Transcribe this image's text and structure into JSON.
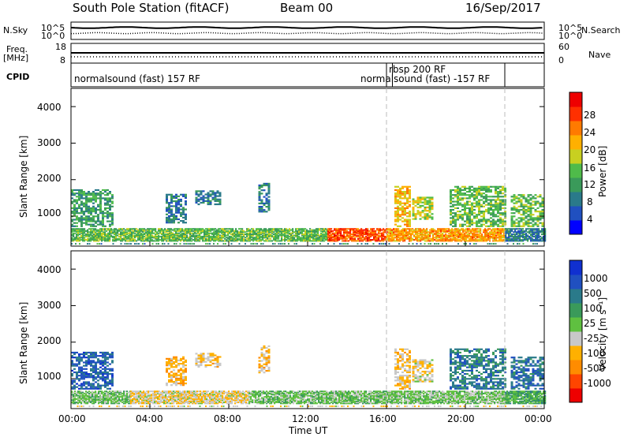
{
  "header": {
    "station": "South Pole Station (fitACF)",
    "beam": "Beam 00",
    "date": "16/Sep/2017"
  },
  "top_panels": {
    "nsky_label": "N.Sky",
    "nsearch_label": "N.Search",
    "freq_label_line1": "Freq.",
    "freq_label_line2": "[MHz]",
    "nave_label": "Nave",
    "cpid_label": "CPID",
    "left_ticks_noise": [
      "10^5",
      "10^0"
    ],
    "right_ticks_noise": [
      "10^5",
      "10^0"
    ],
    "left_ticks_freq": [
      "18",
      "8"
    ],
    "right_ticks_nave": [
      "60",
      "0"
    ],
    "cpid_segments": [
      {
        "label": "normalsound (fast) 157 RF",
        "start_hour": 0,
        "end_hour": 16
      },
      {
        "label": "rbsp 200 RF",
        "start_hour": 16,
        "end_hour": 16.3
      },
      {
        "label": "normalsound (fast) -157 RF",
        "start_hour": 16.3,
        "end_hour": 22
      }
    ]
  },
  "time_axis": {
    "label": "Time UT",
    "ticks": [
      "00:00",
      "04:00",
      "08:00",
      "12:00",
      "16:00",
      "20:00",
      "00:00"
    ],
    "range_hours": [
      0,
      24
    ],
    "dashed_marks_hours": [
      16,
      22
    ]
  },
  "chart_data": [
    {
      "type": "heatmap",
      "ylabel": "Slant Range [km]",
      "ylim": [
        180,
        4500
      ],
      "yticks": [
        "4000",
        "3000",
        "2000",
        "1000"
      ],
      "colorbar": {
        "label": "Power [dB]",
        "ticks": [
          "28",
          "24",
          "20",
          "16",
          "12",
          "8",
          "4"
        ],
        "range": [
          0,
          32
        ],
        "colors": [
          "#0000ff",
          "#2050c0",
          "#2a7a8a",
          "#3a9a5a",
          "#4fbb4a",
          "#c8d020",
          "#ffb000",
          "#ff7a00",
          "#ff3000",
          "#ee0000"
        ]
      },
      "blobs": [
        {
          "t0": 0.0,
          "t1": 2.1,
          "r0": 700,
          "r1": 1700,
          "v": 11
        },
        {
          "t0": 4.8,
          "t1": 5.8,
          "r0": 800,
          "r1": 1600,
          "v": 8
        },
        {
          "t0": 6.3,
          "t1": 7.6,
          "r0": 1300,
          "r1": 1700,
          "v": 9
        },
        {
          "t0": 9.5,
          "t1": 10.0,
          "r0": 1100,
          "r1": 1900,
          "v": 8
        },
        {
          "t0": 16.4,
          "t1": 17.2,
          "r0": 700,
          "r1": 1800,
          "v": 20
        },
        {
          "t0": 17.3,
          "t1": 18.3,
          "r0": 900,
          "r1": 1500,
          "v": 17
        },
        {
          "t0": 19.2,
          "t1": 22.0,
          "r0": 700,
          "r1": 1800,
          "v": 14
        },
        {
          "t0": 22.3,
          "t1": 23.9,
          "r0": 700,
          "r1": 1600,
          "v": 14
        }
      ],
      "band": {
        "r0": 300,
        "r1": 640,
        "segments": [
          {
            "t0": 0.0,
            "t1": 13.0,
            "v": 14
          },
          {
            "t0": 13.0,
            "t1": 16.0,
            "v": 26
          },
          {
            "t0": 16.0,
            "t1": 22.0,
            "v": 22
          },
          {
            "t0": 22.0,
            "t1": 24.0,
            "v": 8
          }
        ]
      }
    },
    {
      "type": "heatmap",
      "ylabel": "Slant Range [km]",
      "ylim": [
        180,
        4500
      ],
      "yticks": [
        "4000",
        "3000",
        "2000",
        "1000"
      ],
      "colorbar": {
        "label": "Velocity [m s⁻¹]",
        "ticks": [
          "1000",
          "500",
          "100",
          "25",
          "-25",
          "-100",
          "-500",
          "-1000"
        ],
        "range": [
          -1250,
          1250
        ],
        "colors": [
          "#ee0000",
          "#ff4500",
          "#ff8c00",
          "#ffb000",
          "#c8c8c8",
          "#5fc040",
          "#3a9a5a",
          "#2a7a8a",
          "#2050c0",
          "#1030d0"
        ]
      },
      "blobs": [
        {
          "t0": 0.0,
          "t1": 2.1,
          "r0": 700,
          "r1": 1700,
          "v": 800
        },
        {
          "t0": 4.8,
          "t1": 5.8,
          "r0": 800,
          "r1": 1600,
          "v": -400
        },
        {
          "t0": 6.3,
          "t1": 7.6,
          "r0": 1300,
          "r1": 1700,
          "v": -300
        },
        {
          "t0": 9.5,
          "t1": 10.0,
          "r0": 1100,
          "r1": 1900,
          "v": -350
        },
        {
          "t0": 16.4,
          "t1": 17.2,
          "r0": 700,
          "r1": 1800,
          "v": -300
        },
        {
          "t0": 17.3,
          "t1": 18.3,
          "r0": 900,
          "r1": 1500,
          "v": -200
        },
        {
          "t0": 19.2,
          "t1": 22.0,
          "r0": 700,
          "r1": 1800,
          "v": 600
        },
        {
          "t0": 22.3,
          "t1": 23.9,
          "r0": 700,
          "r1": 1600,
          "v": 700
        }
      ],
      "band": {
        "r0": 300,
        "r1": 640,
        "segments": [
          {
            "t0": 0.0,
            "t1": 3.0,
            "v": 150
          },
          {
            "t0": 3.0,
            "t1": 9.0,
            "v": -200
          },
          {
            "t0": 9.0,
            "t1": 16.0,
            "v": 120
          },
          {
            "t0": 16.0,
            "t1": 22.0,
            "v": 80
          },
          {
            "t0": 22.0,
            "t1": 24.0,
            "v": 300
          }
        ]
      }
    }
  ]
}
